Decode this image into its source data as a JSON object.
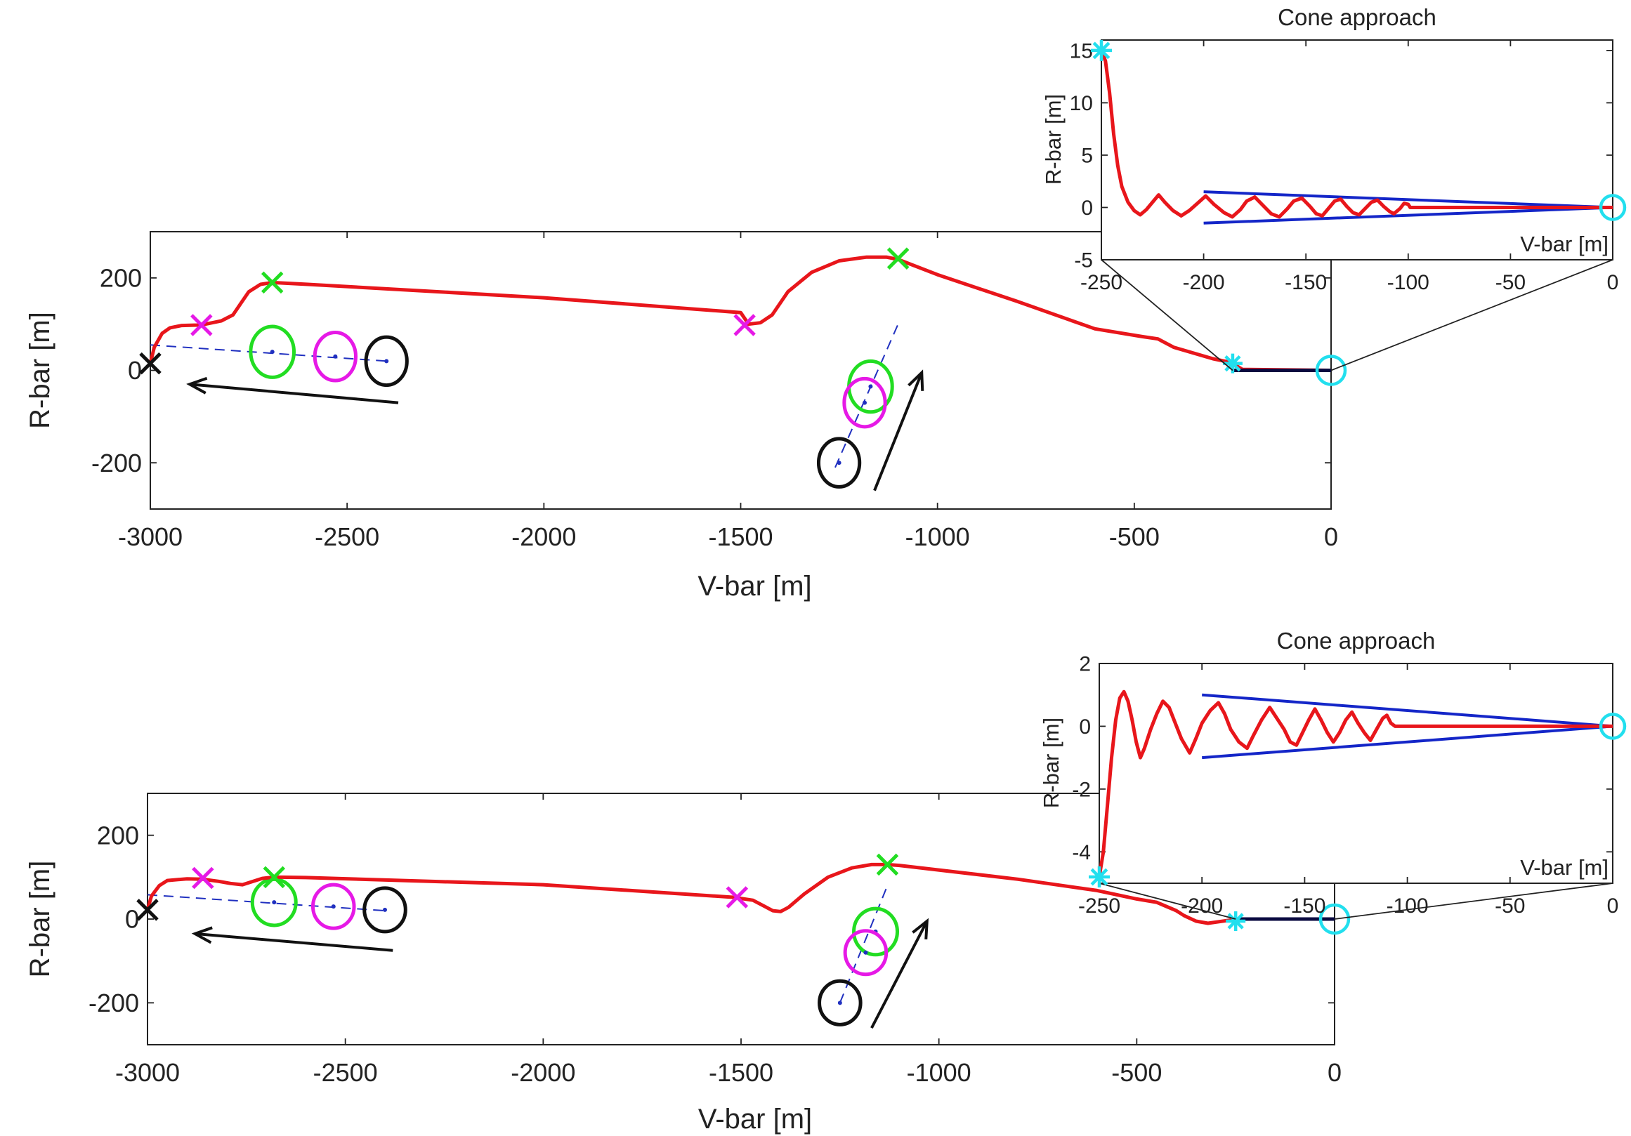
{
  "colors": {
    "trajectory": "#e8161b",
    "cone": "#1426c8",
    "green": "#22dd22",
    "magenta": "#e619e6",
    "black": "#111111",
    "cyan": "#22dfee",
    "dashed": "#2030c0"
  },
  "chart_data": [
    {
      "id": "top",
      "type": "line",
      "xlabel": "V-bar [m]",
      "ylabel": "R-bar [m]",
      "xlim": [
        -3000,
        0
      ],
      "ylim": [
        -300,
        300
      ],
      "xticks": [
        -3000,
        -2500,
        -2000,
        -1500,
        -1000,
        -500,
        0
      ],
      "yticks": [
        -200,
        0,
        200
      ],
      "trajectory": [
        [
          -3000,
          15
        ],
        [
          -2990,
          50
        ],
        [
          -2970,
          80
        ],
        [
          -2950,
          92
        ],
        [
          -2920,
          97
        ],
        [
          -2880,
          98
        ],
        [
          -2860,
          100
        ],
        [
          -2820,
          107
        ],
        [
          -2790,
          120
        ],
        [
          -2770,
          145
        ],
        [
          -2750,
          170
        ],
        [
          -2720,
          186
        ],
        [
          -2690,
          190
        ],
        [
          -2600,
          186
        ],
        [
          -2000,
          157
        ],
        [
          -1500,
          125
        ],
        [
          -1480,
          100
        ],
        [
          -1450,
          103
        ],
        [
          -1420,
          120
        ],
        [
          -1380,
          170
        ],
        [
          -1320,
          212
        ],
        [
          -1250,
          237
        ],
        [
          -1180,
          245
        ],
        [
          -1130,
          245
        ],
        [
          -1100,
          240
        ],
        [
          -1000,
          207
        ],
        [
          -800,
          150
        ],
        [
          -600,
          90
        ],
        [
          -480,
          73
        ],
        [
          -440,
          68
        ],
        [
          -400,
          50
        ],
        [
          -300,
          25
        ],
        [
          -260,
          18
        ],
        [
          -250,
          15
        ],
        [
          -225,
          2
        ],
        [
          0,
          0
        ]
      ],
      "cone_segment": [
        [
          -250,
          0
        ],
        [
          0,
          0
        ]
      ],
      "markers": [
        {
          "kind": "x",
          "color": "black",
          "x": -3000,
          "y": 15
        },
        {
          "kind": "x",
          "color": "magenta",
          "x": -2870,
          "y": 98
        },
        {
          "kind": "x",
          "color": "green",
          "x": -2690,
          "y": 190
        },
        {
          "kind": "x",
          "color": "magenta",
          "x": -1490,
          "y": 98
        },
        {
          "kind": "x",
          "color": "green",
          "x": -1100,
          "y": 242
        },
        {
          "kind": "star",
          "color": "cyan",
          "x": -250,
          "y": 15
        },
        {
          "kind": "circle",
          "color": "cyan",
          "x": 0,
          "y": 0
        }
      ],
      "dashed_line": [
        [
          -3000,
          55
        ],
        [
          -2400,
          20
        ]
      ],
      "dashed_line_2": [
        [
          -1260,
          -210
        ],
        [
          -1100,
          100
        ]
      ],
      "ellipses": [
        {
          "color": "green",
          "x": -2690,
          "y": 40,
          "rx": 55,
          "ry": 55
        },
        {
          "color": "magenta",
          "x": -2530,
          "y": 30,
          "rx": 52,
          "ry": 52
        },
        {
          "color": "black",
          "x": -2400,
          "y": 20,
          "rx": 52,
          "ry": 52
        },
        {
          "color": "green",
          "x": -1170,
          "y": -35,
          "rx": 55,
          "ry": 55
        },
        {
          "color": "magenta",
          "x": -1185,
          "y": -70,
          "rx": 52,
          "ry": 52
        },
        {
          "color": "black",
          "x": -1250,
          "y": -200,
          "rx": 52,
          "ry": 52
        }
      ],
      "arrows": [
        {
          "from": [
            -2370,
            -70
          ],
          "to": [
            -2900,
            -30
          ]
        },
        {
          "from": [
            -1160,
            -260
          ],
          "to": [
            -1040,
            -5
          ]
        }
      ],
      "zoom_from": [
        -250,
        0
      ],
      "inset": {
        "title": "Cone approach",
        "xlabel": "V-bar [m]",
        "ylabel": "R-bar [m]",
        "xlim": [
          -250,
          0
        ],
        "ylim": [
          -5,
          16
        ],
        "xticks": [
          -250,
          -200,
          -150,
          -100,
          -50,
          0
        ],
        "yticks": [
          -5,
          0,
          5,
          10,
          15
        ],
        "trajectory": [
          [
            -250,
            15
          ],
          [
            -248,
            14
          ],
          [
            -246,
            11
          ],
          [
            -244,
            7
          ],
          [
            -242,
            4
          ],
          [
            -240,
            2
          ],
          [
            -237,
            0.5
          ],
          [
            -234,
            -0.3
          ],
          [
            -231,
            -0.7
          ],
          [
            -228,
            -0.2
          ],
          [
            -225,
            0.5
          ],
          [
            -222,
            1.2
          ],
          [
            -219,
            0.5
          ],
          [
            -215,
            -0.3
          ],
          [
            -211,
            -0.8
          ],
          [
            -207,
            -0.3
          ],
          [
            -203,
            0.4
          ],
          [
            -199,
            1.1
          ],
          [
            -195,
            0.3
          ],
          [
            -190,
            -0.5
          ],
          [
            -186,
            -0.9
          ],
          [
            -182,
            -0.2
          ],
          [
            -179,
            0.6
          ],
          [
            -175,
            1.0
          ],
          [
            -171,
            0.2
          ],
          [
            -167,
            -0.6
          ],
          [
            -163,
            -0.9
          ],
          [
            -159,
            -0.1
          ],
          [
            -156,
            0.6
          ],
          [
            -152,
            0.9
          ],
          [
            -148,
            0.1
          ],
          [
            -145,
            -0.6
          ],
          [
            -142,
            -0.8
          ],
          [
            -139,
            -0.1
          ],
          [
            -136,
            0.6
          ],
          [
            -133,
            0.8
          ],
          [
            -130,
            0.1
          ],
          [
            -127,
            -0.5
          ],
          [
            -124,
            -0.7
          ],
          [
            -121,
            -0.1
          ],
          [
            -118,
            0.5
          ],
          [
            -115,
            0.7
          ],
          [
            -112,
            0.1
          ],
          [
            -109,
            -0.4
          ],
          [
            -107,
            -0.6
          ],
          [
            -104,
            -0.1
          ],
          [
            -102,
            0.4
          ],
          [
            -100,
            0.3
          ],
          [
            -99,
            0
          ],
          [
            0,
            0
          ]
        ],
        "cone_upper": [
          [
            -200,
            1.5
          ],
          [
            0,
            0
          ]
        ],
        "cone_lower": [
          [
            -200,
            -1.5
          ],
          [
            0,
            0
          ]
        ],
        "markers": [
          {
            "kind": "star",
            "color": "cyan",
            "x": -250,
            "y": 15
          },
          {
            "kind": "circle",
            "color": "cyan",
            "x": 0,
            "y": 0
          }
        ]
      }
    },
    {
      "id": "bottom",
      "type": "line",
      "xlabel": "V-bar [m]",
      "ylabel": "R-bar [m]",
      "xlim": [
        -3000,
        0
      ],
      "ylim": [
        -300,
        300
      ],
      "xticks": [
        -3000,
        -2500,
        -2000,
        -1500,
        -1000,
        -500,
        0
      ],
      "yticks": [
        -200,
        0,
        200
      ],
      "trajectory": [
        [
          -3000,
          22
        ],
        [
          -2990,
          55
        ],
        [
          -2970,
          80
        ],
        [
          -2950,
          92
        ],
        [
          -2900,
          96
        ],
        [
          -2860,
          95
        ],
        [
          -2820,
          90
        ],
        [
          -2790,
          85
        ],
        [
          -2760,
          82
        ],
        [
          -2740,
          88
        ],
        [
          -2710,
          97
        ],
        [
          -2680,
          100
        ],
        [
          -2600,
          99
        ],
        [
          -2000,
          82
        ],
        [
          -1520,
          52
        ],
        [
          -1470,
          45
        ],
        [
          -1440,
          30
        ],
        [
          -1420,
          20
        ],
        [
          -1400,
          18
        ],
        [
          -1380,
          28
        ],
        [
          -1340,
          60
        ],
        [
          -1280,
          100
        ],
        [
          -1220,
          122
        ],
        [
          -1170,
          130
        ],
        [
          -1130,
          130
        ],
        [
          -1100,
          128
        ],
        [
          -800,
          95
        ],
        [
          -600,
          68
        ],
        [
          -500,
          48
        ],
        [
          -450,
          40
        ],
        [
          -400,
          20
        ],
        [
          -380,
          8
        ],
        [
          -350,
          -5
        ],
        [
          -320,
          -10
        ],
        [
          -260,
          -2
        ],
        [
          -250,
          0
        ],
        [
          0,
          0
        ]
      ],
      "cone_segment": [
        [
          -250,
          0
        ],
        [
          0,
          0
        ]
      ],
      "markers": [
        {
          "kind": "x",
          "color": "black",
          "x": -3000,
          "y": 22
        },
        {
          "kind": "x",
          "color": "magenta",
          "x": -2860,
          "y": 98
        },
        {
          "kind": "x",
          "color": "green",
          "x": -2680,
          "y": 100
        },
        {
          "kind": "x",
          "color": "magenta",
          "x": -1510,
          "y": 52
        },
        {
          "kind": "x",
          "color": "green",
          "x": -1130,
          "y": 130
        },
        {
          "kind": "star",
          "color": "cyan",
          "x": -250,
          "y": -5
        },
        {
          "kind": "circle",
          "color": "cyan",
          "x": 0,
          "y": 0
        }
      ],
      "dashed_line": [
        [
          -3000,
          58
        ],
        [
          -2400,
          20
        ]
      ],
      "dashed_line_2": [
        [
          -1250,
          -200
        ],
        [
          -1130,
          80
        ]
      ],
      "ellipses": [
        {
          "color": "green",
          "x": -2680,
          "y": 40,
          "rx": 55,
          "ry": 55
        },
        {
          "color": "magenta",
          "x": -2530,
          "y": 30,
          "rx": 52,
          "ry": 52
        },
        {
          "color": "black",
          "x": -2400,
          "y": 22,
          "rx": 52,
          "ry": 52
        },
        {
          "color": "green",
          "x": -1160,
          "y": -30,
          "rx": 55,
          "ry": 55
        },
        {
          "color": "magenta",
          "x": -1185,
          "y": -80,
          "rx": 52,
          "ry": 52
        },
        {
          "color": "black",
          "x": -1250,
          "y": -200,
          "rx": 52,
          "ry": 52
        }
      ],
      "arrows": [
        {
          "from": [
            -2380,
            -75
          ],
          "to": [
            -2880,
            -35
          ]
        },
        {
          "from": [
            -1170,
            -260
          ],
          "to": [
            -1030,
            -5
          ]
        }
      ],
      "zoom_from": [
        -250,
        0
      ],
      "inset": {
        "title": "Cone approach",
        "xlabel": "V-bar [m]",
        "ylabel": "R-bar [m]",
        "xlim": [
          -250,
          0
        ],
        "ylim": [
          -5,
          2
        ],
        "xticks": [
          -250,
          -200,
          -150,
          -100,
          -50,
          0
        ],
        "yticks": [
          -4,
          -2,
          0,
          2
        ],
        "trajectory": [
          [
            -250,
            -4.8
          ],
          [
            -248,
            -4
          ],
          [
            -246,
            -2.5
          ],
          [
            -244,
            -1
          ],
          [
            -242,
            0.2
          ],
          [
            -240,
            0.9
          ],
          [
            -238,
            1.1
          ],
          [
            -236,
            0.8
          ],
          [
            -234,
            0.2
          ],
          [
            -232,
            -0.5
          ],
          [
            -230,
            -1.0
          ],
          [
            -228,
            -0.7
          ],
          [
            -225,
            -0.1
          ],
          [
            -222,
            0.4
          ],
          [
            -219,
            0.8
          ],
          [
            -216,
            0.6
          ],
          [
            -213,
            0.1
          ],
          [
            -210,
            -0.4
          ],
          [
            -206,
            -0.85
          ],
          [
            -203,
            -0.4
          ],
          [
            -200,
            0.1
          ],
          [
            -196,
            0.5
          ],
          [
            -192,
            0.75
          ],
          [
            -189,
            0.4
          ],
          [
            -186,
            -0.1
          ],
          [
            -182,
            -0.5
          ],
          [
            -178,
            -0.7
          ],
          [
            -175,
            -0.3
          ],
          [
            -171,
            0.2
          ],
          [
            -167,
            0.6
          ],
          [
            -164,
            0.3
          ],
          [
            -160,
            -0.1
          ],
          [
            -157,
            -0.5
          ],
          [
            -154,
            -0.6
          ],
          [
            -151,
            -0.2
          ],
          [
            -148,
            0.2
          ],
          [
            -145,
            0.55
          ],
          [
            -142,
            0.2
          ],
          [
            -139,
            -0.2
          ],
          [
            -136,
            -0.5
          ],
          [
            -133,
            -0.2
          ],
          [
            -130,
            0.2
          ],
          [
            -127,
            0.45
          ],
          [
            -124,
            0.1
          ],
          [
            -121,
            -0.2
          ],
          [
            -118,
            -0.45
          ],
          [
            -115,
            -0.1
          ],
          [
            -112,
            0.25
          ],
          [
            -110,
            0.35
          ],
          [
            -108,
            0.1
          ],
          [
            -106,
            0
          ],
          [
            0,
            0
          ]
        ],
        "cone_upper": [
          [
            -200,
            1.0
          ],
          [
            0,
            0
          ]
        ],
        "cone_lower": [
          [
            -200,
            -1.0
          ],
          [
            0,
            0
          ]
        ],
        "markers": [
          {
            "kind": "star",
            "color": "cyan",
            "x": -250,
            "y": -4.8
          },
          {
            "kind": "circle",
            "color": "cyan",
            "x": 0,
            "y": 0
          }
        ]
      }
    }
  ]
}
